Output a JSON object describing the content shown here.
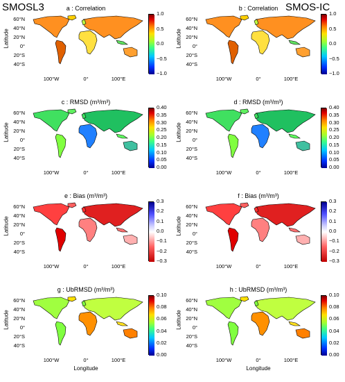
{
  "headers": {
    "left": "SMOSL3",
    "right": "SMOS-IC"
  },
  "axis": {
    "ylabel": "Latitude",
    "xlabel": "Longitude",
    "lat_ticks": [
      "60°N",
      "40°N",
      "20°N",
      "0°",
      "20°S",
      "40°S"
    ],
    "lon_ticks": [
      "100°W",
      "0°",
      "100°E"
    ]
  },
  "panels": [
    {
      "id": "a",
      "title": "a : Correlation",
      "unit": "",
      "metric": "corr",
      "cbar": [
        "1.0",
        "0.5",
        "0.0",
        "−0.5",
        "−1.0"
      ]
    },
    {
      "id": "b",
      "title": "b : Correlation",
      "unit": "",
      "metric": "corr",
      "cbar": [
        "1.0",
        "0.5",
        "0.0",
        "−0.5",
        "−1.0"
      ]
    },
    {
      "id": "c",
      "title": "c : RMSD",
      "unit": "(m³/m³)",
      "metric": "rmsd",
      "cbar": [
        "0.40",
        "0.35",
        "0.30",
        "0.25",
        "0.20",
        "0.15",
        "0.10",
        "0.05",
        "0.00"
      ]
    },
    {
      "id": "d",
      "title": "d : RMSD",
      "unit": "(m³/m³)",
      "metric": "rmsd",
      "cbar": [
        "0.40",
        "0.35",
        "0.30",
        "0.25",
        "0.20",
        "0.15",
        "0.10",
        "0.05",
        "0.00"
      ]
    },
    {
      "id": "e",
      "title": "e : Bias",
      "unit": "(m³/m³)",
      "metric": "bias",
      "cbar": [
        "0.3",
        "0.2",
        "0.1",
        "0.0",
        "−0.1",
        "−0.2",
        "−0.3"
      ]
    },
    {
      "id": "f",
      "title": "f : Bias",
      "unit": "(m³/m³)",
      "metric": "bias",
      "cbar": [
        "0.3",
        "0.2",
        "0.1",
        "0.0",
        "−0.1",
        "−0.2",
        "−0.3"
      ]
    },
    {
      "id": "g",
      "title": "g : UbRMSD",
      "unit": "(m³/m³)",
      "metric": "ubrmsd",
      "cbar": [
        "0.10",
        "0.08",
        "0.06",
        "0.04",
        "0.02",
        "0.00"
      ]
    },
    {
      "id": "h",
      "title": "h : UbRMSD",
      "unit": "(m³/m³)",
      "metric": "ubrmsd",
      "cbar": [
        "0.10",
        "0.08",
        "0.06",
        "0.04",
        "0.02",
        "0.00"
      ]
    }
  ],
  "colors": {
    "jet": [
      "#00008f",
      "#0030ff",
      "#00c8ff",
      "#40ff80",
      "#80ff40",
      "#ffe000",
      "#ff8000",
      "#e00000",
      "#800000"
    ],
    "bias": [
      "#c00000",
      "#ff6060",
      "#ffd0d0",
      "#ffffff",
      "#d0d0ff",
      "#6060ff",
      "#000090"
    ]
  }
}
